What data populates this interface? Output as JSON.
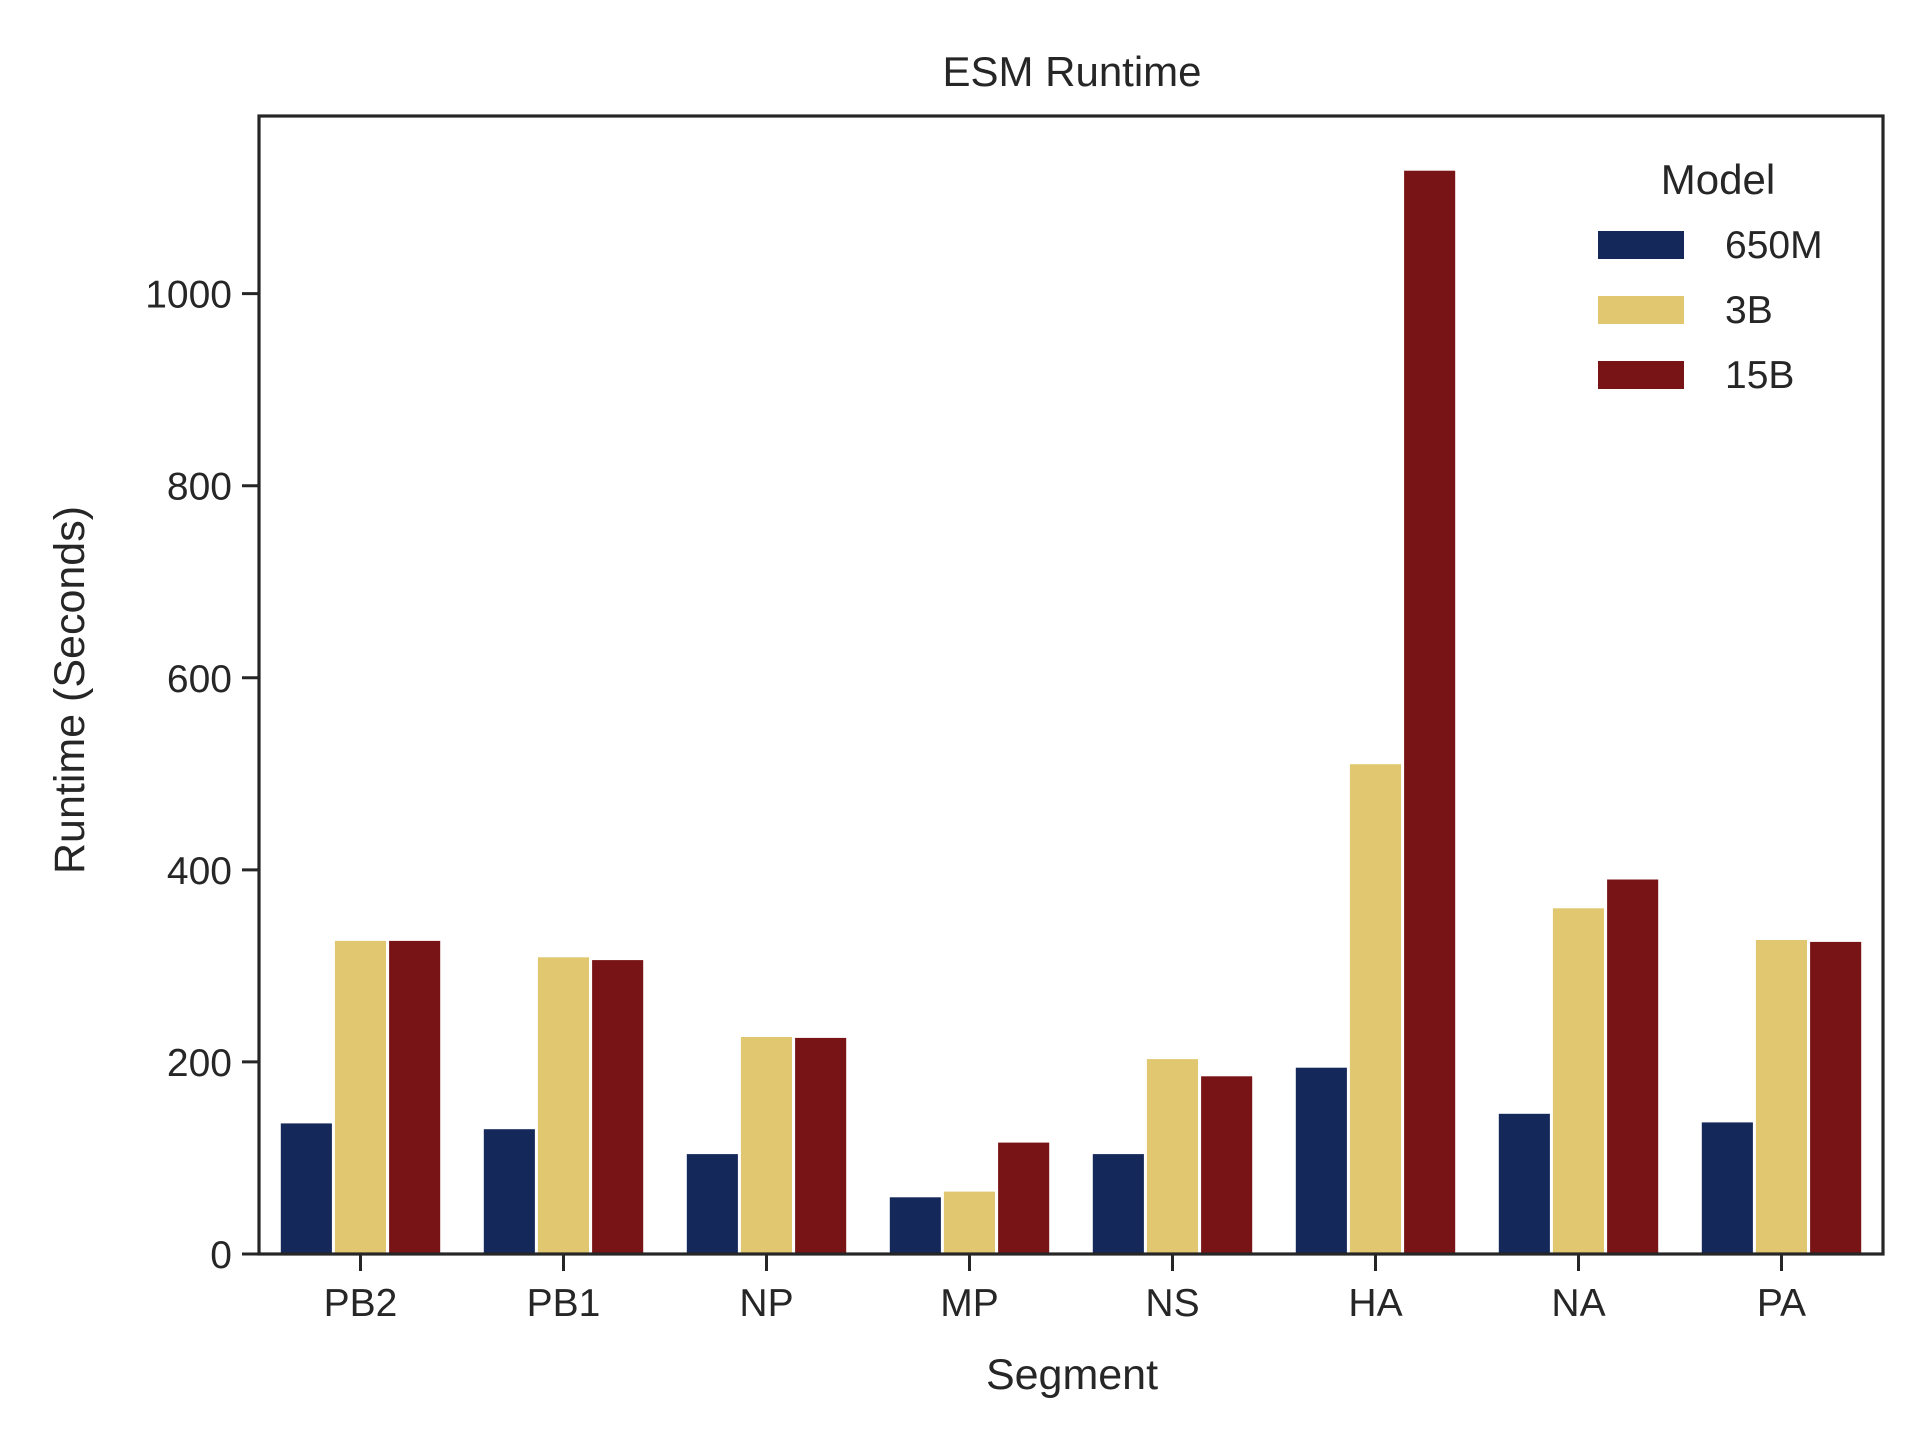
{
  "chart_data": {
    "type": "bar",
    "title": "ESM Runtime",
    "xlabel": "Segment",
    "ylabel": "Runtime (Seconds)",
    "categories": [
      "PB2",
      "PB1",
      "NP",
      "MP",
      "NS",
      "HA",
      "NA",
      "PA"
    ],
    "series": [
      {
        "name": "650M",
        "color": "#15285a",
        "values": [
          136,
          130,
          104,
          59,
          104,
          194,
          146,
          137
        ]
      },
      {
        "name": "3B",
        "color": "#e1c870",
        "values": [
          326,
          309,
          226,
          65,
          203,
          510,
          360,
          327
        ]
      },
      {
        "name": "15B",
        "color": "#781415",
        "values": [
          326,
          306,
          225,
          116,
          185,
          1128,
          390,
          325
        ]
      }
    ],
    "ylim": [
      0,
      1185
    ],
    "yticks": [
      0,
      200,
      400,
      600,
      800,
      1000
    ],
    "legend": {
      "title": "Model",
      "placement": "top-right"
    },
    "grid": false
  }
}
